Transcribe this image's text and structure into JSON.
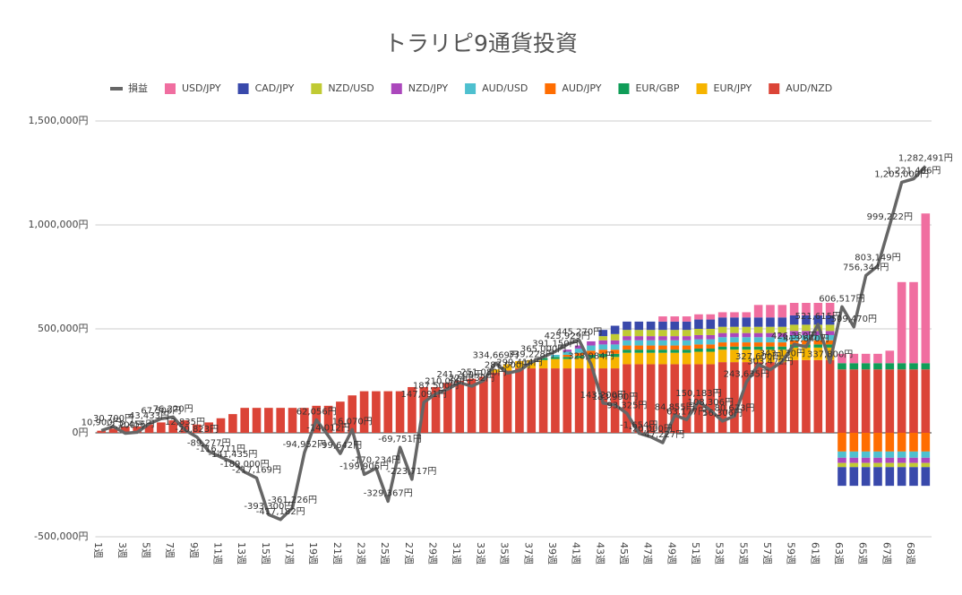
{
  "chart_data": {
    "type": "bar",
    "stacked": true,
    "title": "トラリピ9通貨投資",
    "categories": [
      "1週",
      null,
      "3週",
      null,
      "5週",
      null,
      "7週",
      null,
      "9週",
      null,
      "11週",
      null,
      "13週",
      null,
      "15週",
      null,
      "17週",
      null,
      "19週",
      null,
      "21週",
      null,
      "23週",
      null,
      "25週",
      null,
      "27週",
      null,
      "29週",
      null,
      "31週",
      null,
      "33週",
      null,
      "35週",
      null,
      "37週",
      null,
      "39週",
      null,
      "41週",
      null,
      "43週",
      null,
      "45週",
      null,
      "47週",
      null,
      "49週",
      null,
      "51週",
      null,
      "53週",
      null,
      "55週",
      null,
      "57週",
      null,
      "59週",
      null,
      "61週",
      null,
      "63週",
      null,
      "65週",
      null,
      "67週",
      null,
      "68週",
      null
    ],
    "ylim": [
      -500000,
      1500000
    ],
    "yticks": [
      {
        "value": -500000,
        "label": "-500,000円"
      },
      {
        "value": 0,
        "label": "0円"
      },
      {
        "value": 500000,
        "label": "500,000円"
      },
      {
        "value": 1000000,
        "label": "1,000,000円"
      },
      {
        "value": 1500000,
        "label": "1,500,000円"
      }
    ],
    "grid": true,
    "legend": "top",
    "series": [
      {
        "name": "損益",
        "type": "line",
        "color": "#666666",
        "values": [
          10900,
          30700,
          -2200,
          2456,
          43433,
          67500,
          76220,
          12835,
          -20823,
          -89277,
          -116711,
          -141435,
          -189000,
          -217169,
          -393300,
          -417182,
          -361226,
          -94952,
          62056,
          -14012,
          -99642,
          16070,
          -199906,
          -170234,
          -329367,
          -69751,
          -223717,
          147091,
          187500,
          210000,
          241200,
          224332,
          251080,
          334669,
          287000,
          299414,
          339228,
          365000,
          391150,
          425929,
          445270,
          328984,
          143200,
          133990,
          93325,
          -1654,
          -20000,
          -47227,
          84855,
          63177,
          150183,
          108306,
          56306,
          80673,
          243635,
          327600,
          303472,
          343130,
          426350,
          413640,
          521615,
          337800,
          606517,
          509470,
          756344,
          803149,
          999222,
          1205000,
          1221406,
          1282491
        ],
        "value_labels": [
          "10,900円",
          "30,700円",
          "-2,200円",
          "2,456円",
          "43,433円",
          "67,500円",
          "76,220円",
          "12,835円",
          "-20,823円",
          "-89,277円",
          "-116,711円",
          "-141,435円",
          "-189,000円",
          "-217,169円",
          "-393,300円",
          "-417,182円",
          "-361,226円",
          "-94,952円",
          "62,056円",
          "-14,012円",
          "-99,642円",
          "16,070円",
          "-199,906円",
          "-170,234円",
          "-329,367円",
          "-69,751円",
          "-223,717円",
          "147,091円",
          "187,500円",
          "210,000円",
          "241,200円",
          "224,332円",
          "251,080円",
          "334,669円",
          "287,000円",
          "299,414円",
          "339,228円",
          "365,000円",
          "391,150円",
          "425,929円",
          "445,270円",
          "328,984円",
          "143,200円",
          "133,990円",
          "93,325円",
          "-1,654円",
          "-20,000円",
          "-47,227円",
          "84,855円",
          "63,177円",
          "150,183円",
          "108,306円",
          "56,306円",
          "80,673円",
          "243,635円",
          "327,600円",
          "303,472円",
          "343,130円",
          "426,350円",
          "413,640円",
          "521,615円",
          "337,800円",
          "606,517円",
          "509,470円",
          "756,344円",
          "803,149円",
          "999,222円",
          "1,205,000円",
          "1,221,406円",
          "1,282,491円"
        ]
      },
      {
        "name": "USD/JPY",
        "type": "bar",
        "color": "#f06ea0",
        "values": [
          0,
          0,
          0,
          0,
          0,
          0,
          0,
          0,
          0,
          0,
          0,
          0,
          0,
          0,
          0,
          0,
          0,
          0,
          0,
          0,
          0,
          0,
          0,
          0,
          0,
          0,
          0,
          0,
          0,
          0,
          0,
          0,
          0,
          0,
          0,
          0,
          0,
          0,
          0,
          0,
          0,
          0,
          0,
          0,
          0,
          0,
          0,
          25000,
          25000,
          25000,
          25000,
          25000,
          25000,
          25000,
          25000,
          60000,
          60000,
          60000,
          60000,
          60000,
          60000,
          60000,
          45000,
          45000,
          45000,
          45000,
          60000,
          390000,
          390000,
          720000
        ]
      },
      {
        "name": "CAD/JPY",
        "type": "bar",
        "color": "#3949ab",
        "values": [
          0,
          0,
          0,
          0,
          0,
          0,
          0,
          0,
          0,
          0,
          0,
          0,
          0,
          0,
          0,
          0,
          0,
          0,
          0,
          0,
          0,
          0,
          0,
          0,
          0,
          0,
          0,
          0,
          0,
          0,
          0,
          0,
          0,
          0,
          0,
          0,
          0,
          0,
          0,
          0,
          0,
          0,
          30000,
          40000,
          40000,
          40000,
          40000,
          40000,
          40000,
          40000,
          45000,
          45000,
          45000,
          45000,
          45000,
          45000,
          45000,
          45000,
          45000,
          45000,
          45000,
          45000,
          -90000,
          -90000,
          -90000,
          -90000,
          -90000,
          -90000,
          -90000,
          -90000
        ]
      },
      {
        "name": "NZD/USD",
        "type": "bar",
        "color": "#c0ca33",
        "values": [
          0,
          0,
          0,
          0,
          0,
          0,
          0,
          0,
          0,
          0,
          0,
          0,
          0,
          0,
          0,
          0,
          0,
          0,
          0,
          0,
          0,
          0,
          0,
          0,
          0,
          0,
          0,
          0,
          0,
          0,
          0,
          0,
          0,
          0,
          0,
          0,
          0,
          0,
          0,
          0,
          0,
          0,
          20000,
          30000,
          30000,
          30000,
          30000,
          30000,
          30000,
          30000,
          30000,
          30000,
          30000,
          30000,
          30000,
          30000,
          30000,
          30000,
          30000,
          30000,
          30000,
          30000,
          -20000,
          -20000,
          -20000,
          -20000,
          -20000,
          -20000,
          -20000,
          -20000
        ]
      },
      {
        "name": "NZD/JPY",
        "type": "bar",
        "color": "#ab47bc",
        "values": [
          0,
          0,
          0,
          0,
          0,
          0,
          0,
          0,
          0,
          0,
          0,
          0,
          0,
          0,
          0,
          0,
          0,
          0,
          0,
          0,
          0,
          0,
          0,
          0,
          0,
          0,
          0,
          0,
          0,
          0,
          0,
          0,
          0,
          0,
          0,
          0,
          0,
          0,
          0,
          10000,
          15000,
          20000,
          20000,
          20000,
          20000,
          20000,
          20000,
          20000,
          20000,
          20000,
          20000,
          20000,
          20000,
          20000,
          20000,
          20000,
          20000,
          20000,
          20000,
          20000,
          20000,
          20000,
          -25000,
          -25000,
          -25000,
          -25000,
          -25000,
          -25000,
          -25000,
          -25000
        ]
      },
      {
        "name": "AUD/USD",
        "type": "bar",
        "color": "#4ec0cf",
        "values": [
          0,
          0,
          0,
          0,
          0,
          0,
          0,
          0,
          0,
          0,
          0,
          0,
          0,
          0,
          0,
          0,
          0,
          0,
          0,
          0,
          0,
          0,
          0,
          0,
          0,
          0,
          0,
          0,
          0,
          0,
          0,
          0,
          0,
          0,
          0,
          0,
          0,
          0,
          10000,
          15000,
          20000,
          25000,
          25000,
          25000,
          25000,
          25000,
          25000,
          25000,
          25000,
          25000,
          25000,
          25000,
          25000,
          25000,
          25000,
          25000,
          25000,
          25000,
          25000,
          25000,
          25000,
          25000,
          -30000,
          -30000,
          -30000,
          -30000,
          -30000,
          -30000,
          -30000,
          -30000
        ]
      },
      {
        "name": "AUD/JPY",
        "type": "bar",
        "color": "#ff6d01",
        "values": [
          0,
          0,
          0,
          0,
          0,
          0,
          0,
          0,
          0,
          0,
          0,
          0,
          0,
          0,
          0,
          0,
          0,
          0,
          0,
          0,
          0,
          0,
          0,
          0,
          0,
          0,
          0,
          0,
          0,
          0,
          0,
          0,
          0,
          0,
          0,
          0,
          0,
          0,
          0,
          10000,
          15000,
          20000,
          20000,
          20000,
          20000,
          20000,
          20000,
          20000,
          20000,
          20000,
          20000,
          20000,
          20000,
          20000,
          20000,
          20000,
          20000,
          20000,
          20000,
          20000,
          20000,
          20000,
          -90000,
          -90000,
          -90000,
          -90000,
          -90000,
          -90000,
          -90000,
          -90000
        ]
      },
      {
        "name": "EUR/GBP",
        "type": "bar",
        "color": "#109d58",
        "values": [
          0,
          0,
          0,
          0,
          0,
          0,
          0,
          0,
          0,
          0,
          0,
          0,
          0,
          0,
          0,
          0,
          0,
          0,
          0,
          0,
          0,
          0,
          0,
          0,
          0,
          0,
          0,
          0,
          0,
          0,
          0,
          0,
          0,
          0,
          0,
          0,
          0,
          10000,
          10000,
          10000,
          10000,
          15000,
          15000,
          15000,
          15000,
          15000,
          15000,
          15000,
          15000,
          15000,
          15000,
          15000,
          15000,
          15000,
          15000,
          15000,
          15000,
          15000,
          15000,
          15000,
          15000,
          15000,
          30000,
          30000,
          30000,
          30000,
          30000,
          30000,
          30000,
          30000
        ]
      },
      {
        "name": "EUR/JPY",
        "type": "bar",
        "color": "#f6b400",
        "values": [
          0,
          0,
          0,
          0,
          0,
          0,
          0,
          0,
          0,
          0,
          0,
          0,
          0,
          0,
          0,
          0,
          0,
          0,
          0,
          0,
          0,
          0,
          0,
          0,
          0,
          0,
          0,
          0,
          0,
          0,
          0,
          0,
          0,
          15000,
          30000,
          35000,
          40000,
          40000,
          45000,
          45000,
          50000,
          50000,
          55000,
          55000,
          55000,
          55000,
          55000,
          55000,
          55000,
          55000,
          60000,
          60000,
          60000,
          60000,
          60000,
          60000,
          60000,
          60000,
          60000,
          60000,
          60000,
          60000,
          0,
          0,
          0,
          0,
          0,
          0,
          0,
          0
        ]
      },
      {
        "name": "AUD/NZD",
        "type": "bar",
        "color": "#db4437",
        "values": [
          10000,
          20000,
          30000,
          30000,
          40000,
          50000,
          60000,
          60000,
          40000,
          50000,
          70000,
          90000,
          120000,
          120000,
          120000,
          120000,
          120000,
          120000,
          130000,
          130000,
          150000,
          180000,
          200000,
          200000,
          200000,
          200000,
          220000,
          220000,
          220000,
          240000,
          250000,
          260000,
          270000,
          290000,
          300000,
          310000,
          310000,
          310000,
          310000,
          310000,
          310000,
          310000,
          310000,
          310000,
          330000,
          330000,
          330000,
          330000,
          330000,
          330000,
          330000,
          330000,
          340000,
          340000,
          340000,
          340000,
          340000,
          340000,
          350000,
          350000,
          350000,
          350000,
          305000,
          305000,
          305000,
          305000,
          305000,
          305000,
          305000,
          305000
        ]
      }
    ]
  }
}
